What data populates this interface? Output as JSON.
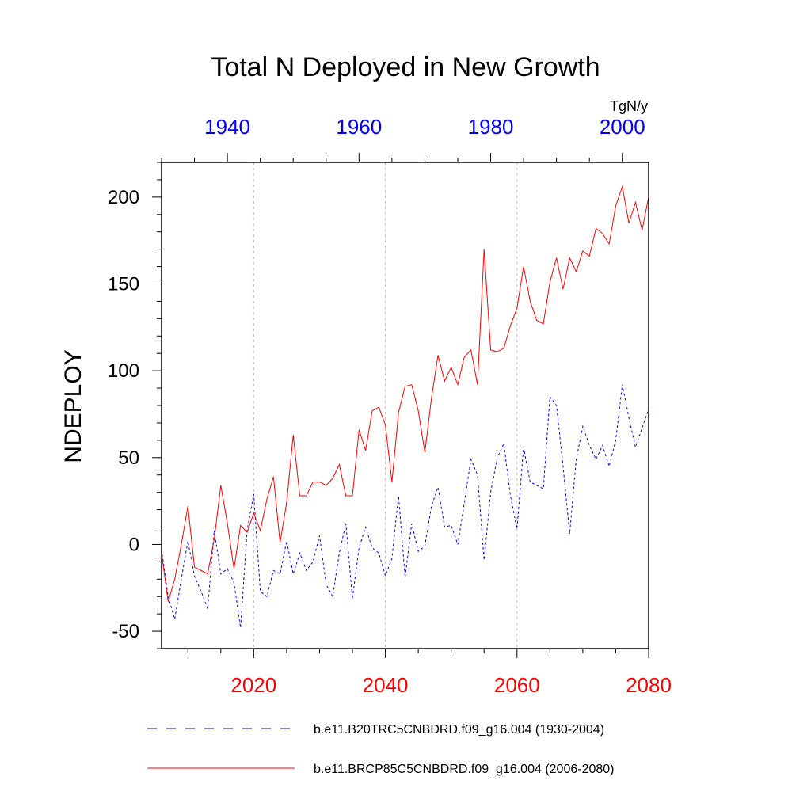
{
  "chart_data": {
    "type": "line",
    "title": "Total N Deployed in New Growth",
    "units": "TgN/y",
    "ylabel": "NDEPLOY",
    "ylim": [
      -60,
      220
    ],
    "yticks": [
      -50,
      0,
      50,
      100,
      150,
      200
    ],
    "bottom_axis": {
      "range": [
        2006,
        2080
      ],
      "ticks": [
        2020,
        2040,
        2060,
        2080
      ],
      "tick_labels": [
        "2020",
        "2040",
        "2060",
        "2080"
      ],
      "color": "#ff0000"
    },
    "top_axis": {
      "range": [
        1930,
        2004
      ],
      "ticks": [
        1940,
        1960,
        1980,
        2000
      ],
      "tick_labels": [
        "1940",
        "1960",
        "1980",
        "2000"
      ],
      "color": "#0000ff"
    },
    "gridlines_x": [
      2020,
      2040,
      2060
    ],
    "series": [
      {
        "name": "b.e11.B20TRC5CNBDRD.f09_g16.004 (1930-2004)",
        "axis": "top",
        "color": "#0000ff",
        "style": "dashed",
        "x": [
          1930,
          1931,
          1932,
          1933,
          1934,
          1935,
          1936,
          1937,
          1938,
          1939,
          1940,
          1941,
          1942,
          1943,
          1944,
          1945,
          1946,
          1947,
          1948,
          1949,
          1950,
          1951,
          1952,
          1953,
          1954,
          1955,
          1956,
          1957,
          1958,
          1959,
          1960,
          1961,
          1962,
          1963,
          1964,
          1965,
          1966,
          1967,
          1968,
          1969,
          1970,
          1971,
          1972,
          1973,
          1974,
          1975,
          1976,
          1977,
          1978,
          1979,
          1980,
          1981,
          1982,
          1983,
          1984,
          1985,
          1986,
          1987,
          1988,
          1989,
          1990,
          1991,
          1992,
          1993,
          1994,
          1995,
          1996,
          1997,
          1998,
          1999,
          2000,
          2001,
          2002,
          2003,
          2004
        ],
        "values": [
          -3,
          -30,
          -43,
          -20,
          2,
          -18,
          -27,
          -37,
          8,
          -17,
          -14,
          -22,
          -48,
          8,
          29,
          -27,
          -30,
          -15,
          -17,
          2,
          -17,
          -5,
          -15,
          -10,
          5,
          -23,
          -30,
          -5,
          12,
          -31,
          -2,
          10,
          -2,
          -5,
          -18,
          -8,
          28,
          -19,
          12,
          -4,
          -1,
          22,
          33,
          10,
          11,
          0,
          24,
          49,
          40,
          -9,
          30,
          50,
          58,
          28,
          9,
          56,
          36,
          34,
          32,
          85,
          80,
          45,
          6,
          49,
          68,
          57,
          49,
          57,
          45,
          60,
          92,
          73,
          56,
          67,
          78
        ]
      },
      {
        "name": "b.e11.BRCP85C5CNBDRD.f09_g16.004 (2006-2080)",
        "axis": "bottom",
        "color": "#ff0000",
        "style": "solid",
        "x": [
          2006,
          2007,
          2008,
          2009,
          2010,
          2011,
          2012,
          2013,
          2014,
          2015,
          2016,
          2017,
          2018,
          2019,
          2020,
          2021,
          2022,
          2023,
          2024,
          2025,
          2026,
          2027,
          2028,
          2029,
          2030,
          2031,
          2032,
          2033,
          2034,
          2035,
          2036,
          2037,
          2038,
          2039,
          2040,
          2041,
          2042,
          2043,
          2044,
          2045,
          2046,
          2047,
          2048,
          2049,
          2050,
          2051,
          2052,
          2053,
          2054,
          2055,
          2056,
          2057,
          2058,
          2059,
          2060,
          2061,
          2062,
          2063,
          2064,
          2065,
          2066,
          2067,
          2068,
          2069,
          2070,
          2071,
          2072,
          2073,
          2074,
          2075,
          2076,
          2077,
          2078,
          2079,
          2080
        ],
        "values": [
          -5,
          -33,
          -20,
          0,
          22,
          -13,
          -15,
          -17,
          3,
          34,
          12,
          -14,
          11,
          7,
          18,
          8,
          26,
          39,
          1,
          24,
          63,
          28,
          28,
          36,
          36,
          34,
          38,
          46,
          28,
          28,
          66,
          54,
          77,
          79,
          69,
          36,
          76,
          91,
          92,
          77,
          53,
          84,
          109,
          94,
          102,
          92,
          108,
          112,
          92,
          170,
          112,
          111,
          113,
          126,
          136,
          160,
          140,
          129,
          127,
          151,
          165,
          147,
          165,
          157,
          169,
          166,
          182,
          179,
          173,
          195,
          206,
          185,
          197,
          181,
          200
        ]
      }
    ]
  }
}
